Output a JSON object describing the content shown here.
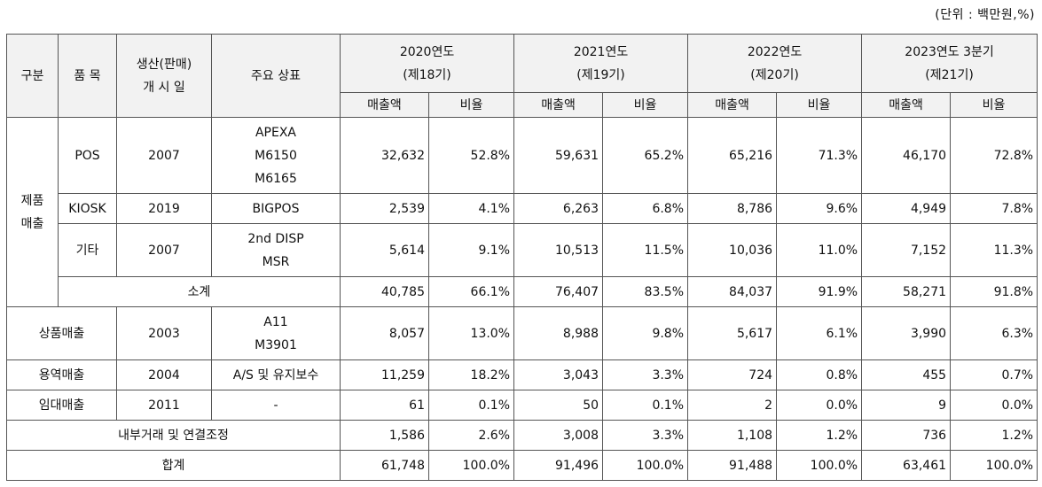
{
  "unit_note": "(단위 : 백만원,%)",
  "header": {
    "category": "구분",
    "product": "품 목",
    "start_date_l1": "생산(판매)",
    "start_date_l2": "개 시 일",
    "brand": "주요 상표",
    "periods": [
      {
        "year": "2020연도",
        "term": "(제18기)"
      },
      {
        "year": "2021연도",
        "term": "(제19기)"
      },
      {
        "year": "2022연도",
        "term": "(제20기)"
      },
      {
        "year": "2023연도 3분기",
        "term": "(제21기)"
      }
    ],
    "sales": "매출액",
    "ratio": "비율"
  },
  "product_sales": {
    "label_l1": "제품",
    "label_l2": "매출",
    "rows": [
      {
        "item": "POS",
        "date": "2007",
        "brands": [
          "APEXA",
          "M6150",
          "M6165"
        ],
        "values": [
          "32,632",
          "52.8%",
          "59,631",
          "65.2%",
          "65,216",
          "71.3%",
          "46,170",
          "72.8%"
        ]
      },
      {
        "item": "KIOSK",
        "date": "2019",
        "brands": [
          "BIGPOS"
        ],
        "values": [
          "2,539",
          "4.1%",
          "6,263",
          "6.8%",
          "8,786",
          "9.6%",
          "4,949",
          "7.8%"
        ]
      },
      {
        "item": "기타",
        "date": "2007",
        "brands": [
          "2nd DISP",
          "MSR"
        ],
        "values": [
          "5,614",
          "9.1%",
          "10,513",
          "11.5%",
          "10,036",
          "11.0%",
          "7,152",
          "11.3%"
        ]
      }
    ],
    "subtotal": {
      "label": "소계",
      "values": [
        "40,785",
        "66.1%",
        "76,407",
        "83.5%",
        "84,037",
        "91.9%",
        "58,271",
        "91.8%"
      ]
    }
  },
  "other_rows": [
    {
      "label": "상품매출",
      "date": "2003",
      "brands": [
        "A11",
        "M3901"
      ],
      "values": [
        "8,057",
        "13.0%",
        "8,988",
        "9.8%",
        "5,617",
        "6.1%",
        "3,990",
        "6.3%"
      ]
    },
    {
      "label": "용역매출",
      "date": "2004",
      "brands": [
        "A/S 및 유지보수"
      ],
      "values": [
        "11,259",
        "18.2%",
        "3,043",
        "3.3%",
        "724",
        "0.8%",
        "455",
        "0.7%"
      ]
    },
    {
      "label": "임대매출",
      "date": "2011",
      "brands": [
        "-"
      ],
      "values": [
        "61",
        "0.1%",
        "50",
        "0.1%",
        "2",
        "0.0%",
        "9",
        "0.0%"
      ]
    }
  ],
  "adjustment": {
    "label": "내부거래 및 연결조정",
    "values": [
      "1,586",
      "2.6%",
      "3,008",
      "3.3%",
      "1,108",
      "1.2%",
      "736",
      "1.2%"
    ]
  },
  "total": {
    "label": "합계",
    "values": [
      "61,748",
      "100.0%",
      "91,496",
      "100.0%",
      "91,488",
      "100.0%",
      "63,461",
      "100.0%"
    ]
  }
}
